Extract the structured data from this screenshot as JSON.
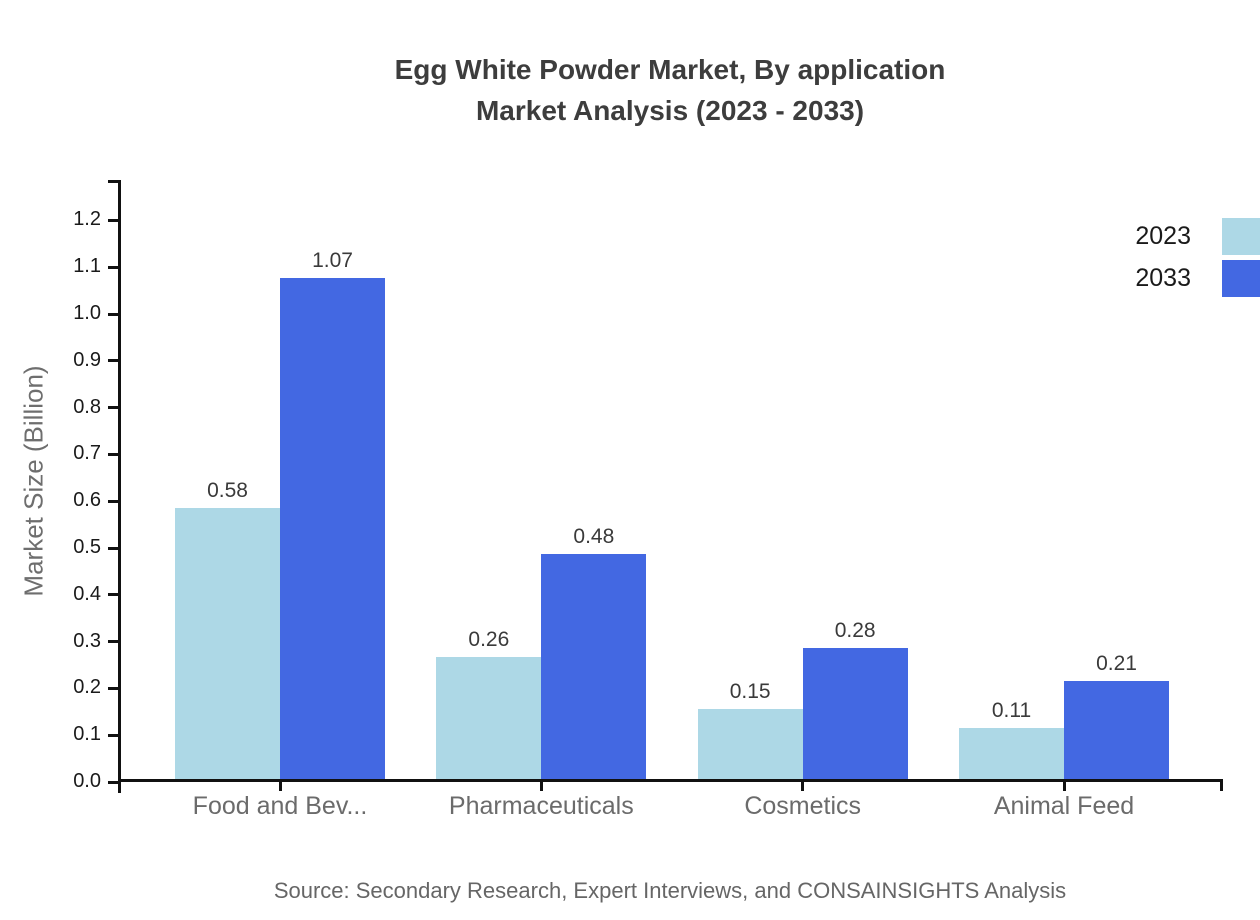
{
  "title": {
    "line1": "Egg White Powder Market, By application",
    "line2": "Market Analysis (2023 - 2033)"
  },
  "source": "Source: Secondary Research, Expert Interviews, and CONSAINSIGHTS Analysis",
  "legend": {
    "position": "top-right",
    "items": [
      {
        "label": "2023",
        "color": "#add8e6"
      },
      {
        "label": "2033",
        "color": "#4368e2"
      }
    ]
  },
  "chart_data": {
    "type": "bar",
    "title": "Egg White Powder Market, By application Market Analysis (2023 - 2033)",
    "categories": [
      "Food and Bev...",
      "Pharmaceuticals",
      "Cosmetics",
      "Animal Feed"
    ],
    "series": [
      {
        "name": "2023",
        "color": "#add8e6",
        "values": [
          0.58,
          0.26,
          0.15,
          0.11
        ]
      },
      {
        "name": "2033",
        "color": "#4368e2",
        "values": [
          1.07,
          0.48,
          0.28,
          0.21
        ]
      }
    ],
    "xlabel": "",
    "ylabel": "Market Size (Billion)",
    "ylim": [
      0.0,
      1.29
    ],
    "ytick_labels": [
      "0.0",
      "0.1",
      "0.2",
      "0.3",
      "0.4",
      "0.5",
      "0.6",
      "0.7",
      "0.8",
      "0.9",
      "1.0",
      "1.1",
      "1.2"
    ],
    "grid": false,
    "value_labels": true,
    "legend_position": "top-right"
  }
}
